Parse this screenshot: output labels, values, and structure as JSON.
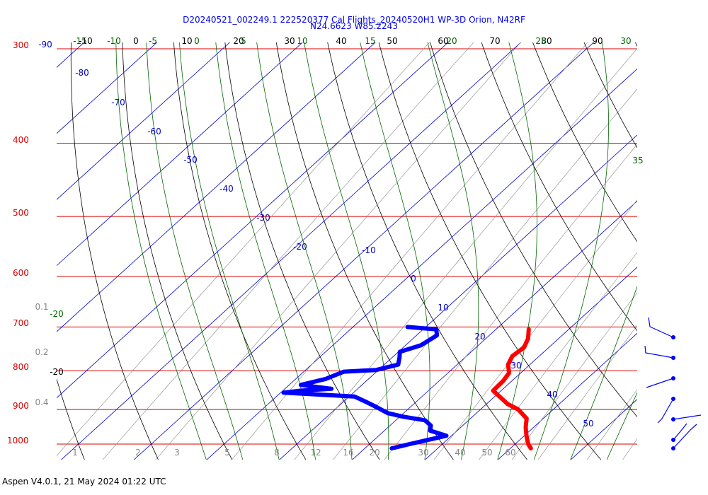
{
  "header": {
    "title_line1": "D20240521_002249.1 222520377 Cal Flights_20240520H1 WP-3D Orion, N42RF",
    "title_line2": "N24.6623 W85.2243"
  },
  "footer": {
    "text": "Aspen V4.0.1, 21 May 2024  01:22 UTC"
  },
  "chart_data": {
    "type": "scatter",
    "chart_type": "skew-t log-p thermodynamic diagram",
    "pressure_axis": {
      "log_scale": true,
      "range": [
        300,
        1000
      ],
      "tick_labels": [
        "300",
        "400",
        "500",
        "600",
        "700",
        "800",
        "900",
        "1000"
      ]
    },
    "isotherm_top_labels": [
      "-90",
      "-80",
      "-70",
      "-60",
      "-50",
      "-40",
      "-30",
      "-20",
      "-10",
      "0",
      "10",
      "20",
      "30",
      "40",
      "50"
    ],
    "isotherm_labels_black": [
      "-10",
      "0",
      "10",
      "20",
      "30",
      "40",
      "50",
      "60",
      "70",
      "80",
      "90"
    ],
    "moist_adiabat_labels": [
      "-15",
      "-10",
      "-5",
      "0",
      "5",
      "10",
      "15",
      "20",
      "25",
      "30",
      "35"
    ],
    "mixing_ratio_labels": [
      "1",
      "2",
      "3",
      "5",
      "8",
      "12",
      "16",
      "20",
      "30",
      "40",
      "50",
      "60"
    ],
    "left_axis_labels": [
      "0.1",
      "0.2",
      "0.4"
    ],
    "left_extra_labels": [
      "-20",
      "-20"
    ],
    "grid": true,
    "colors": {
      "pressure_lines": "#dd0000",
      "isotherms": "#0000cc",
      "dry_adiabats": "#000000",
      "moist_adiabats": "#006600",
      "mixing_ratio": "#888888",
      "temperature": "#ff0000",
      "dewpoint": "#0000ff"
    },
    "series": [
      {
        "kind": "temperature",
        "color": "#ff0000",
        "points": [
          [
            705,
            4.5
          ],
          [
            725,
            5.8
          ],
          [
            745,
            6.6
          ],
          [
            765,
            6.3
          ],
          [
            785,
            7.0
          ],
          [
            805,
            8.4
          ],
          [
            825,
            8.8
          ],
          [
            850,
            8.9
          ],
          [
            870,
            11.2
          ],
          [
            885,
            12.9
          ],
          [
            900,
            15.2
          ],
          [
            925,
            17.7
          ],
          [
            950,
            18.9
          ],
          [
            975,
            20.3
          ],
          [
            1000,
            21.8
          ],
          [
            1013,
            22.8
          ]
        ]
      },
      {
        "kind": "dewpoint",
        "color": "#0000ff",
        "points": [
          [
            700,
            -12.5
          ],
          [
            705,
            -8.2
          ],
          [
            718,
            -7.2
          ],
          [
            740,
            -7.9
          ],
          [
            755,
            -9.8
          ],
          [
            768,
            -9.0
          ],
          [
            785,
            -8.1
          ],
          [
            798,
            -10.3
          ],
          [
            802,
            -14.5
          ],
          [
            820,
            -15.9
          ],
          [
            835,
            -18.4
          ],
          [
            845,
            -13.6
          ],
          [
            850,
            -17.6
          ],
          [
            855,
            -19.6
          ],
          [
            865,
            -9.3
          ],
          [
            878,
            -7.1
          ],
          [
            893,
            -4.7
          ],
          [
            910,
            -2.2
          ],
          [
            920,
            0.5
          ],
          [
            930,
            4.0
          ],
          [
            945,
            5.6
          ],
          [
            960,
            6.3
          ],
          [
            975,
            9.3
          ],
          [
            990,
            7.0
          ],
          [
            1000,
            5.5
          ],
          [
            1013,
            3.7
          ]
        ]
      }
    ],
    "wind_barbs": [
      {
        "pressure": 700,
        "label": "barb-700"
      },
      {
        "pressure": 750,
        "label": "barb-750"
      },
      {
        "pressure": 800,
        "label": "barb-800"
      },
      {
        "pressure": 850,
        "label": "barb-850"
      },
      {
        "pressure": 900,
        "label": "barb-900"
      },
      {
        "pressure": 960,
        "label": "barb-960"
      },
      {
        "pressure": 985,
        "label": "barb-985"
      }
    ]
  }
}
